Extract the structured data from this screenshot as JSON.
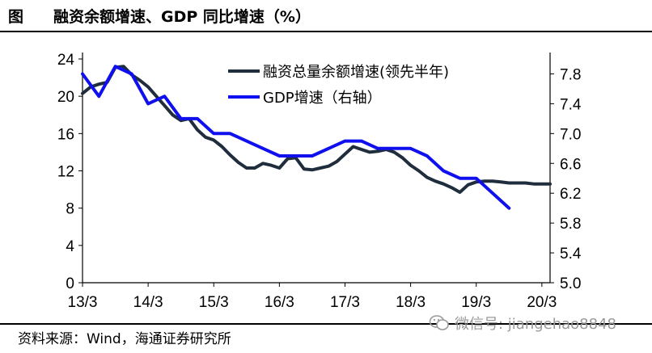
{
  "header": {
    "figure_label": "图",
    "title": "融资余额增速、GDP 同比增速（%）"
  },
  "footer": {
    "source": "资料来源：Wind，海通证券研究所",
    "watermark": "微信号: jiangehao8848"
  },
  "colors": {
    "series_dark": "#1f2d3d",
    "series_blue": "#1010ee"
  },
  "chart_data": {
    "type": "line",
    "x_tick_labels": [
      "13/3",
      "14/3",
      "15/3",
      "16/3",
      "17/3",
      "18/3",
      "19/3",
      "20/3"
    ],
    "left_axis": {
      "ticks": [
        "0",
        "4",
        "8",
        "12",
        "16",
        "20",
        "24"
      ],
      "ylim": [
        0,
        24
      ]
    },
    "right_axis": {
      "ticks": [
        "5.0",
        "5.4",
        "5.8",
        "6.2",
        "6.6",
        "7.0",
        "7.4",
        "7.8"
      ],
      "ylim": [
        5.0,
        8.0
      ]
    },
    "x_range": [
      0,
      28.5
    ],
    "legend": [
      "融资总量余额增速(领先半年)",
      "GDP增速（右轴）"
    ],
    "series": [
      {
        "name": "融资总量余额增速(领先半年)",
        "axis": "left",
        "x": [
          0,
          0.5,
          1,
          1.5,
          2,
          2.5,
          3,
          3.5,
          4,
          4.5,
          5,
          5.5,
          6,
          6.5,
          7,
          7.5,
          8,
          8.5,
          9,
          9.5,
          10,
          10.5,
          11,
          11.5,
          12,
          12.5,
          13,
          13.5,
          14,
          14.5,
          15,
          15.5,
          16,
          16.5,
          17,
          17.5,
          18,
          18.5,
          19,
          19.5,
          20,
          20.5,
          21,
          21.5,
          22,
          22.5,
          23,
          23.5,
          24,
          24.5,
          25,
          25.5,
          26,
          26.5,
          27,
          27.5,
          28,
          28.5
        ],
        "values": [
          20.3,
          21.0,
          21.3,
          21.5,
          23.1,
          23.2,
          22.3,
          21.7,
          21.0,
          20.0,
          19.0,
          18.0,
          17.4,
          17.6,
          16.4,
          15.6,
          15.3,
          14.6,
          13.7,
          12.9,
          12.3,
          12.3,
          12.8,
          12.6,
          12.3,
          13.3,
          13.4,
          12.2,
          12.1,
          12.3,
          12.5,
          13.0,
          13.8,
          14.6,
          14.3,
          14.0,
          14.1,
          14.3,
          14.0,
          13.4,
          12.6,
          12.0,
          11.3,
          10.9,
          10.6,
          10.2,
          9.7,
          10.5,
          10.8,
          10.9,
          10.9,
          10.8,
          10.7,
          10.7,
          10.7,
          10.6,
          10.6,
          10.6
        ]
      },
      {
        "name": "GDP增速（右轴）",
        "axis": "right",
        "x": [
          0,
          1,
          2,
          3,
          4,
          5,
          6,
          7,
          8,
          9,
          10,
          11,
          12,
          13,
          14,
          15,
          16,
          17,
          18,
          19,
          20,
          21,
          22,
          23,
          24,
          25,
          26
        ],
        "values": [
          7.8,
          7.5,
          7.9,
          7.8,
          7.4,
          7.5,
          7.2,
          7.2,
          7.0,
          7.0,
          6.9,
          6.8,
          6.7,
          6.7,
          6.7,
          6.8,
          6.9,
          6.9,
          6.8,
          6.8,
          6.8,
          6.7,
          6.5,
          6.4,
          6.4,
          6.2,
          6.0
        ]
      }
    ]
  }
}
